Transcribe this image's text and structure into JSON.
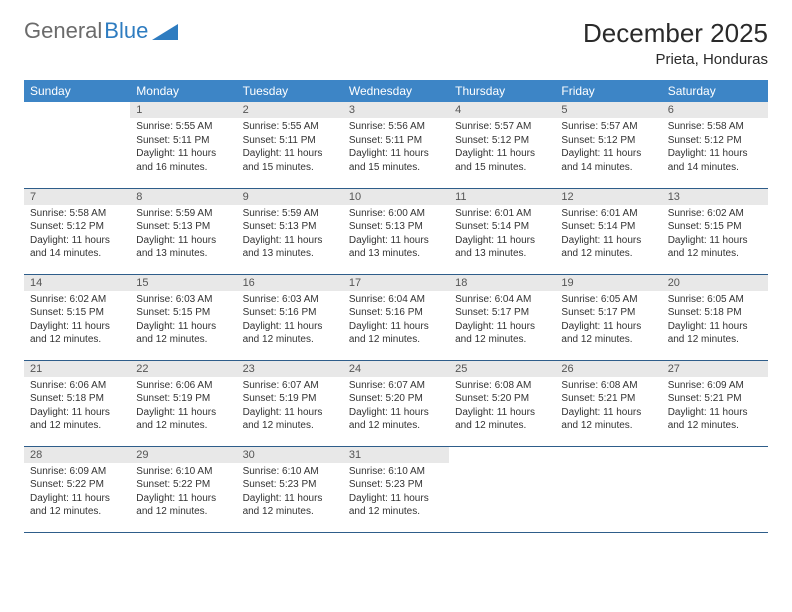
{
  "logo": {
    "text1": "General",
    "text2": "Blue"
  },
  "title": "December 2025",
  "location": "Prieta, Honduras",
  "colors": {
    "header_bg": "#3d85c6",
    "header_text": "#ffffff",
    "daynum_bg": "#e8e8e8",
    "border": "#2e5d8a",
    "logo_gray": "#6b6b6b",
    "logo_blue": "#2e7cc0"
  },
  "day_labels": [
    "Sunday",
    "Monday",
    "Tuesday",
    "Wednesday",
    "Thursday",
    "Friday",
    "Saturday"
  ],
  "weeks": [
    [
      {
        "n": "",
        "sr": "",
        "ss": "",
        "dl": ""
      },
      {
        "n": "1",
        "sr": "Sunrise: 5:55 AM",
        "ss": "Sunset: 5:11 PM",
        "dl": "Daylight: 11 hours and 16 minutes."
      },
      {
        "n": "2",
        "sr": "Sunrise: 5:55 AM",
        "ss": "Sunset: 5:11 PM",
        "dl": "Daylight: 11 hours and 15 minutes."
      },
      {
        "n": "3",
        "sr": "Sunrise: 5:56 AM",
        "ss": "Sunset: 5:11 PM",
        "dl": "Daylight: 11 hours and 15 minutes."
      },
      {
        "n": "4",
        "sr": "Sunrise: 5:57 AM",
        "ss": "Sunset: 5:12 PM",
        "dl": "Daylight: 11 hours and 15 minutes."
      },
      {
        "n": "5",
        "sr": "Sunrise: 5:57 AM",
        "ss": "Sunset: 5:12 PM",
        "dl": "Daylight: 11 hours and 14 minutes."
      },
      {
        "n": "6",
        "sr": "Sunrise: 5:58 AM",
        "ss": "Sunset: 5:12 PM",
        "dl": "Daylight: 11 hours and 14 minutes."
      }
    ],
    [
      {
        "n": "7",
        "sr": "Sunrise: 5:58 AM",
        "ss": "Sunset: 5:12 PM",
        "dl": "Daylight: 11 hours and 14 minutes."
      },
      {
        "n": "8",
        "sr": "Sunrise: 5:59 AM",
        "ss": "Sunset: 5:13 PM",
        "dl": "Daylight: 11 hours and 13 minutes."
      },
      {
        "n": "9",
        "sr": "Sunrise: 5:59 AM",
        "ss": "Sunset: 5:13 PM",
        "dl": "Daylight: 11 hours and 13 minutes."
      },
      {
        "n": "10",
        "sr": "Sunrise: 6:00 AM",
        "ss": "Sunset: 5:13 PM",
        "dl": "Daylight: 11 hours and 13 minutes."
      },
      {
        "n": "11",
        "sr": "Sunrise: 6:01 AM",
        "ss": "Sunset: 5:14 PM",
        "dl": "Daylight: 11 hours and 13 minutes."
      },
      {
        "n": "12",
        "sr": "Sunrise: 6:01 AM",
        "ss": "Sunset: 5:14 PM",
        "dl": "Daylight: 11 hours and 12 minutes."
      },
      {
        "n": "13",
        "sr": "Sunrise: 6:02 AM",
        "ss": "Sunset: 5:15 PM",
        "dl": "Daylight: 11 hours and 12 minutes."
      }
    ],
    [
      {
        "n": "14",
        "sr": "Sunrise: 6:02 AM",
        "ss": "Sunset: 5:15 PM",
        "dl": "Daylight: 11 hours and 12 minutes."
      },
      {
        "n": "15",
        "sr": "Sunrise: 6:03 AM",
        "ss": "Sunset: 5:15 PM",
        "dl": "Daylight: 11 hours and 12 minutes."
      },
      {
        "n": "16",
        "sr": "Sunrise: 6:03 AM",
        "ss": "Sunset: 5:16 PM",
        "dl": "Daylight: 11 hours and 12 minutes."
      },
      {
        "n": "17",
        "sr": "Sunrise: 6:04 AM",
        "ss": "Sunset: 5:16 PM",
        "dl": "Daylight: 11 hours and 12 minutes."
      },
      {
        "n": "18",
        "sr": "Sunrise: 6:04 AM",
        "ss": "Sunset: 5:17 PM",
        "dl": "Daylight: 11 hours and 12 minutes."
      },
      {
        "n": "19",
        "sr": "Sunrise: 6:05 AM",
        "ss": "Sunset: 5:17 PM",
        "dl": "Daylight: 11 hours and 12 minutes."
      },
      {
        "n": "20",
        "sr": "Sunrise: 6:05 AM",
        "ss": "Sunset: 5:18 PM",
        "dl": "Daylight: 11 hours and 12 minutes."
      }
    ],
    [
      {
        "n": "21",
        "sr": "Sunrise: 6:06 AM",
        "ss": "Sunset: 5:18 PM",
        "dl": "Daylight: 11 hours and 12 minutes."
      },
      {
        "n": "22",
        "sr": "Sunrise: 6:06 AM",
        "ss": "Sunset: 5:19 PM",
        "dl": "Daylight: 11 hours and 12 minutes."
      },
      {
        "n": "23",
        "sr": "Sunrise: 6:07 AM",
        "ss": "Sunset: 5:19 PM",
        "dl": "Daylight: 11 hours and 12 minutes."
      },
      {
        "n": "24",
        "sr": "Sunrise: 6:07 AM",
        "ss": "Sunset: 5:20 PM",
        "dl": "Daylight: 11 hours and 12 minutes."
      },
      {
        "n": "25",
        "sr": "Sunrise: 6:08 AM",
        "ss": "Sunset: 5:20 PM",
        "dl": "Daylight: 11 hours and 12 minutes."
      },
      {
        "n": "26",
        "sr": "Sunrise: 6:08 AM",
        "ss": "Sunset: 5:21 PM",
        "dl": "Daylight: 11 hours and 12 minutes."
      },
      {
        "n": "27",
        "sr": "Sunrise: 6:09 AM",
        "ss": "Sunset: 5:21 PM",
        "dl": "Daylight: 11 hours and 12 minutes."
      }
    ],
    [
      {
        "n": "28",
        "sr": "Sunrise: 6:09 AM",
        "ss": "Sunset: 5:22 PM",
        "dl": "Daylight: 11 hours and 12 minutes."
      },
      {
        "n": "29",
        "sr": "Sunrise: 6:10 AM",
        "ss": "Sunset: 5:22 PM",
        "dl": "Daylight: 11 hours and 12 minutes."
      },
      {
        "n": "30",
        "sr": "Sunrise: 6:10 AM",
        "ss": "Sunset: 5:23 PM",
        "dl": "Daylight: 11 hours and 12 minutes."
      },
      {
        "n": "31",
        "sr": "Sunrise: 6:10 AM",
        "ss": "Sunset: 5:23 PM",
        "dl": "Daylight: 11 hours and 12 minutes."
      },
      {
        "n": "",
        "sr": "",
        "ss": "",
        "dl": ""
      },
      {
        "n": "",
        "sr": "",
        "ss": "",
        "dl": ""
      },
      {
        "n": "",
        "sr": "",
        "ss": "",
        "dl": ""
      }
    ]
  ]
}
